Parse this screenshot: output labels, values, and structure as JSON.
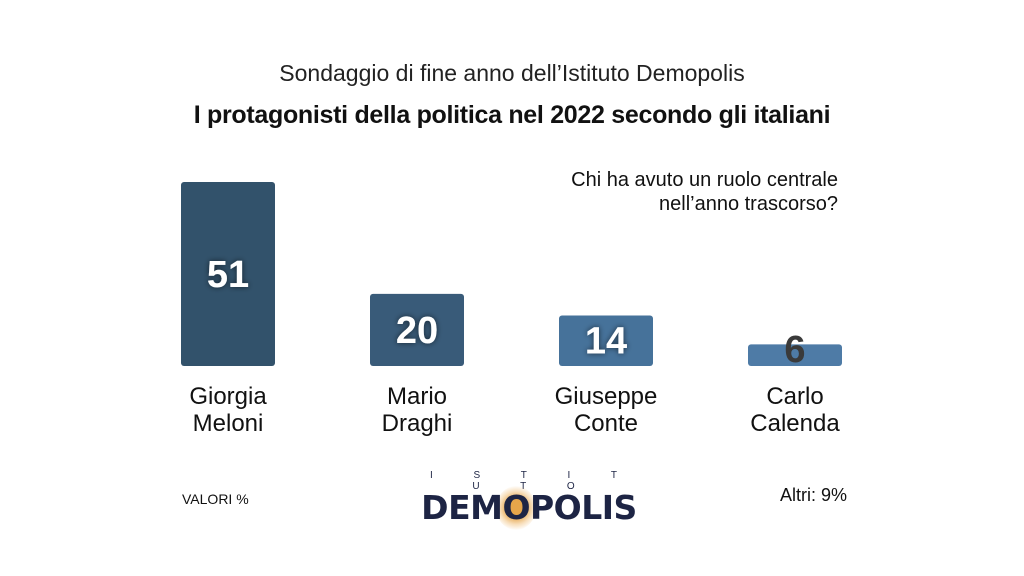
{
  "chart_data": {
    "type": "bar",
    "subtitle": "Sondaggio di fine anno dell’Istituto Demopolis",
    "title": "I protagonisti della politica nel 2022 secondo gli italiani",
    "question": [
      "Chi ha avuto un ruolo centrale",
      "nell’anno trascorso?"
    ],
    "categories": [
      [
        "Giorgia",
        "Meloni"
      ],
      [
        "Mario",
        "Draghi"
      ],
      [
        "Giuseppe",
        "Conte"
      ],
      [
        "Carlo",
        "Calenda"
      ]
    ],
    "values": [
      51,
      20,
      14,
      6
    ],
    "colors": [
      "#32526b",
      "#395b79",
      "#46729a",
      "#4e7ba6"
    ],
    "ylim": [
      0,
      51
    ],
    "unit_note": "VALORI %",
    "others": "Altri: 9%"
  },
  "logo": {
    "top": "I S T I T U T O",
    "main": "DEMOPOLIS"
  }
}
